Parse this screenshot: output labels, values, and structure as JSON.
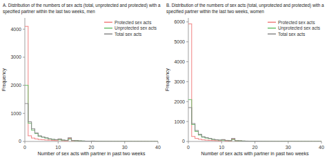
{
  "chart_data": [
    {
      "type": "histogram",
      "title": "A. Distribution of the numbers of sex acts (total, unprotected and protected) with a\nspecified partner within the last two weeks, men",
      "xlabel": "Number of sex acts with partner in past two weeks",
      "ylabel": "Frequency",
      "bins": [
        0,
        1,
        2,
        3,
        4,
        5,
        6,
        7,
        8,
        9,
        10,
        11,
        12,
        13,
        14,
        15,
        16,
        17,
        18,
        19,
        20,
        21,
        22,
        23,
        24,
        25,
        26,
        27,
        28,
        29,
        30,
        31,
        32,
        33,
        34,
        35,
        36,
        37,
        38,
        39,
        40
      ],
      "series": [
        {
          "name": "Protected sex acts",
          "color": "#f08080",
          "values": [
            4100,
            200,
            120,
            90,
            70,
            60,
            50,
            45,
            35,
            30,
            80,
            25,
            20,
            110,
            20,
            30,
            15,
            10,
            5,
            5,
            10,
            5,
            3,
            3,
            3,
            2,
            2,
            2,
            2,
            2,
            2,
            1,
            1,
            1,
            1,
            1,
            1,
            0,
            0,
            0
          ]
        },
        {
          "name": "Unprotected sex acts",
          "color": "#6dbf6d",
          "values": [
            2000,
            650,
            400,
            280,
            180,
            150,
            120,
            90,
            70,
            60,
            55,
            45,
            35,
            80,
            30,
            25,
            20,
            15,
            10,
            10,
            8,
            6,
            5,
            4,
            3,
            3,
            2,
            2,
            2,
            2,
            1,
            1,
            1,
            1,
            1,
            1,
            0,
            0,
            0,
            0
          ]
        },
        {
          "name": "Total sex acts",
          "color": "#888888",
          "values": [
            1350,
            700,
            450,
            300,
            200,
            160,
            130,
            95,
            75,
            65,
            90,
            50,
            40,
            130,
            35,
            30,
            22,
            18,
            12,
            10,
            15,
            8,
            6,
            5,
            4,
            4,
            3,
            3,
            3,
            3,
            2,
            2,
            1,
            1,
            1,
            1,
            1,
            0,
            0,
            0
          ]
        }
      ],
      "xlim": [
        0,
        40
      ],
      "ylim": [
        0,
        4400
      ],
      "xticks": [
        0,
        10,
        20,
        30,
        40
      ],
      "yticks": [
        0,
        1000,
        2000,
        3000,
        4000
      ],
      "legend": "upper right"
    },
    {
      "type": "histogram",
      "title": "B. Distribution of the numbers of sex acts (total, unprotected and protected) with a\nspecified partner within the last two weeks, women",
      "xlabel": "Number of sex acts with partner in past two weeks",
      "ylabel": "Frequency",
      "bins": [
        0,
        1,
        2,
        3,
        4,
        5,
        6,
        7,
        8,
        9,
        10,
        11,
        12,
        13,
        14,
        15,
        16,
        17,
        18,
        19,
        20,
        21,
        22,
        23,
        24,
        25,
        26,
        27,
        28,
        29,
        30,
        31,
        32,
        33,
        34,
        35,
        36,
        37,
        38,
        39,
        40
      ],
      "series": [
        {
          "name": "Protected sex acts",
          "color": "#f08080",
          "values": [
            5900,
            250,
            150,
            110,
            80,
            65,
            55,
            45,
            38,
            32,
            85,
            28,
            22,
            115,
            22,
            32,
            16,
            11,
            6,
            6,
            11,
            6,
            4,
            4,
            4,
            3,
            3,
            3,
            3,
            3,
            3,
            2,
            2,
            2,
            2,
            2,
            2,
            0,
            0,
            0
          ]
        },
        {
          "name": "Unprotected sex acts",
          "color": "#6dbf6d",
          "values": [
            2100,
            850,
            500,
            320,
            210,
            170,
            140,
            100,
            80,
            65,
            60,
            50,
            40,
            90,
            35,
            28,
            22,
            16,
            11,
            11,
            9,
            7,
            6,
            5,
            4,
            4,
            3,
            3,
            3,
            3,
            2,
            2,
            2,
            2,
            2,
            2,
            1,
            0,
            0,
            0
          ]
        },
        {
          "name": "Total sex acts",
          "color": "#888888",
          "values": [
            1700,
            900,
            550,
            360,
            240,
            190,
            155,
            108,
            85,
            70,
            95,
            55,
            45,
            150,
            40,
            35,
            25,
            20,
            13,
            11,
            17,
            9,
            7,
            6,
            5,
            5,
            4,
            4,
            4,
            4,
            3,
            3,
            2,
            2,
            2,
            2,
            2,
            0,
            0,
            0
          ]
        }
      ],
      "xlim": [
        0,
        40
      ],
      "ylim": [
        0,
        6200
      ],
      "xticks": [
        0,
        10,
        20,
        30,
        40
      ],
      "yticks": [
        0,
        1000,
        2000,
        3000,
        4000,
        5000,
        6000
      ],
      "legend": "upper right"
    }
  ]
}
